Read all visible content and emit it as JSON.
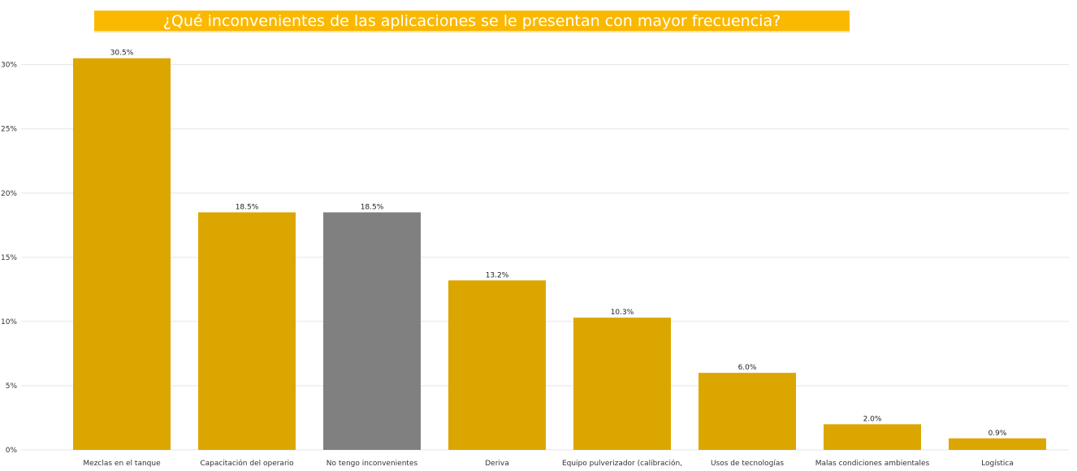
{
  "chart_data": {
    "type": "bar",
    "title": "¿Qué inconvenientes de las aplicaciones se le presentan con mayor frecuencia?",
    "categories": [
      "Mezclas en el tanque",
      "Capacitación del operario",
      "No tengo inconvenientes",
      "Deriva",
      "Equipo pulverizador (calibración,",
      "Usos de tecnologías",
      "Malas condiciones ambientales",
      "Logística"
    ],
    "values": [
      30.5,
      18.5,
      18.5,
      13.2,
      10.3,
      6.0,
      2.0,
      0.9
    ],
    "data_labels": [
      "30.5%",
      "18.5%",
      "18.5%",
      "13.2%",
      "10.3%",
      "6.0%",
      "2.0%",
      "0.9%"
    ],
    "y_ticks": [
      0,
      5,
      10,
      15,
      20,
      25,
      30
    ],
    "y_tick_labels": [
      "0%",
      "5%",
      "10%",
      "15%",
      "20%",
      "25%",
      "30%"
    ],
    "ylim": [
      0,
      32
    ],
    "grid": true,
    "bar_color": "#dca600",
    "highlight_color": "#808080",
    "highlight_index": 2
  }
}
